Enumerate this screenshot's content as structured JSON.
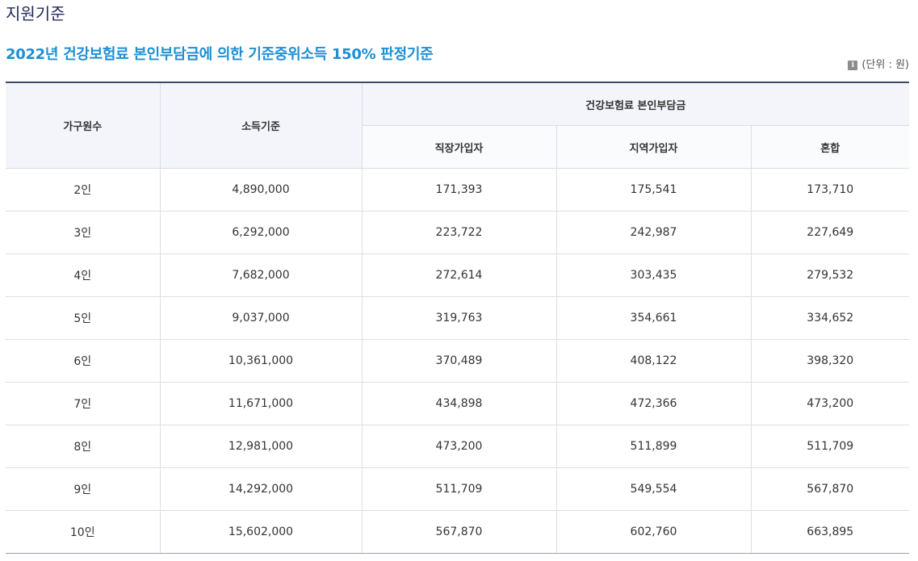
{
  "page": {
    "heading": "지원기준",
    "section_title": "2022년 건강보험료 본인부담금에 의한 기준중위소득 150% 판정기준",
    "unit_note": "(단위 : 원)",
    "unit_icon": "info-icon"
  },
  "table": {
    "headers": {
      "household": "가구원수",
      "income": "소득기준",
      "premium_group": "건강보험료 본인부담금",
      "employee": "직장가입자",
      "regional": "지역가입자",
      "mixed": "혼합"
    },
    "rows": [
      {
        "household": "2인",
        "income": "4,890,000",
        "employee": "171,393",
        "regional": "175,541",
        "mixed": "173,710"
      },
      {
        "household": "3인",
        "income": "6,292,000",
        "employee": "223,722",
        "regional": "242,987",
        "mixed": "227,649"
      },
      {
        "household": "4인",
        "income": "7,682,000",
        "employee": "272,614",
        "regional": "303,435",
        "mixed": "279,532"
      },
      {
        "household": "5인",
        "income": "9,037,000",
        "employee": "319,763",
        "regional": "354,661",
        "mixed": "334,652"
      },
      {
        "household": "6인",
        "income": "10,361,000",
        "employee": "370,489",
        "regional": "408,122",
        "mixed": "398,320"
      },
      {
        "household": "7인",
        "income": "11,671,000",
        "employee": "434,898",
        "regional": "472,366",
        "mixed": "473,200"
      },
      {
        "household": "8인",
        "income": "12,981,000",
        "employee": "473,200",
        "regional": "511,899",
        "mixed": "511,709"
      },
      {
        "household": "9인",
        "income": "14,292,000",
        "employee": "511,709",
        "regional": "549,554",
        "mixed": "567,870"
      },
      {
        "household": "10인",
        "income": "15,602,000",
        "employee": "567,870",
        "regional": "602,760",
        "mixed": "663,895"
      }
    ]
  }
}
